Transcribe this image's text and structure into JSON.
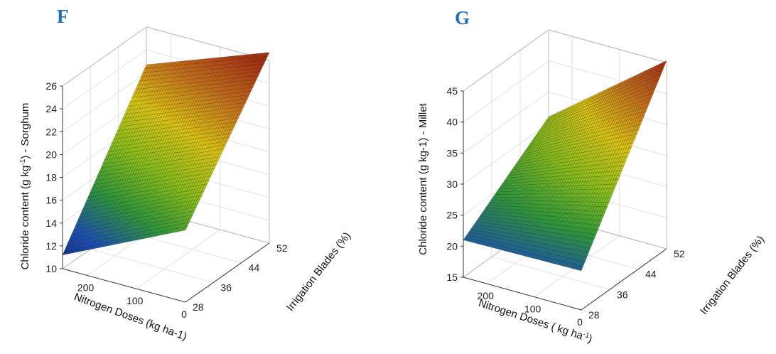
{
  "chart_data": [
    {
      "type": "surface",
      "panel": "F",
      "title": "",
      "xlabel": "Nitrogen Doses (kg ha-1)",
      "ylabel": "Irrigation Blades (%)",
      "zlabel_main": "Chloride content (g kg",
      "zlabel_sup": "-1",
      "zlabel_tail": ") - Sorghum",
      "x_ticks": [
        "0",
        "100",
        "200"
      ],
      "y_ticks": [
        "28",
        "36",
        "44",
        "52"
      ],
      "z_ticks": [
        "10",
        "12",
        "14",
        "16",
        "18",
        "20",
        "22",
        "24",
        "26"
      ],
      "x_range": [
        0,
        250
      ],
      "y_range": [
        28,
        52
      ],
      "z_range": [
        10,
        26
      ],
      "corner_values": {
        "n250_ib28": 11.2,
        "n250_ib52": 22.7,
        "n0_ib28": 16.3,
        "n0_ib52": 26.7
      },
      "colorscale": [
        "#101a6e",
        "#1a4fb8",
        "#2e9a3a",
        "#8cc21a",
        "#e0c812",
        "#c8701a",
        "#a83010"
      ]
    },
    {
      "type": "surface",
      "panel": "G",
      "title": "",
      "xlabel_main": "Nitrogen Doses ( kg ha",
      "xlabel_sup": "-1",
      "xlabel_tail": ")",
      "ylabel": "Irrigation Blades (%)",
      "zlabel": "Chloride content (g kg-1) - Millet",
      "x_ticks": [
        "0",
        "100",
        "200"
      ],
      "y_ticks": [
        "28",
        "36",
        "44",
        "52"
      ],
      "z_ticks": [
        "15",
        "20",
        "25",
        "30",
        "35",
        "40",
        "45"
      ],
      "x_range": [
        0,
        250
      ],
      "y_range": [
        28,
        52
      ],
      "z_range": [
        15,
        45
      ],
      "corner_values": {
        "n250_ib28": 21.0,
        "n250_ib52": 31.0,
        "n0_ib28": 21.3,
        "n0_ib52": 45.3
      },
      "colorscale": [
        "#101a6e",
        "#1a4fb8",
        "#2e9a3a",
        "#8cc21a",
        "#e0c812",
        "#c8701a",
        "#a83010"
      ]
    }
  ]
}
